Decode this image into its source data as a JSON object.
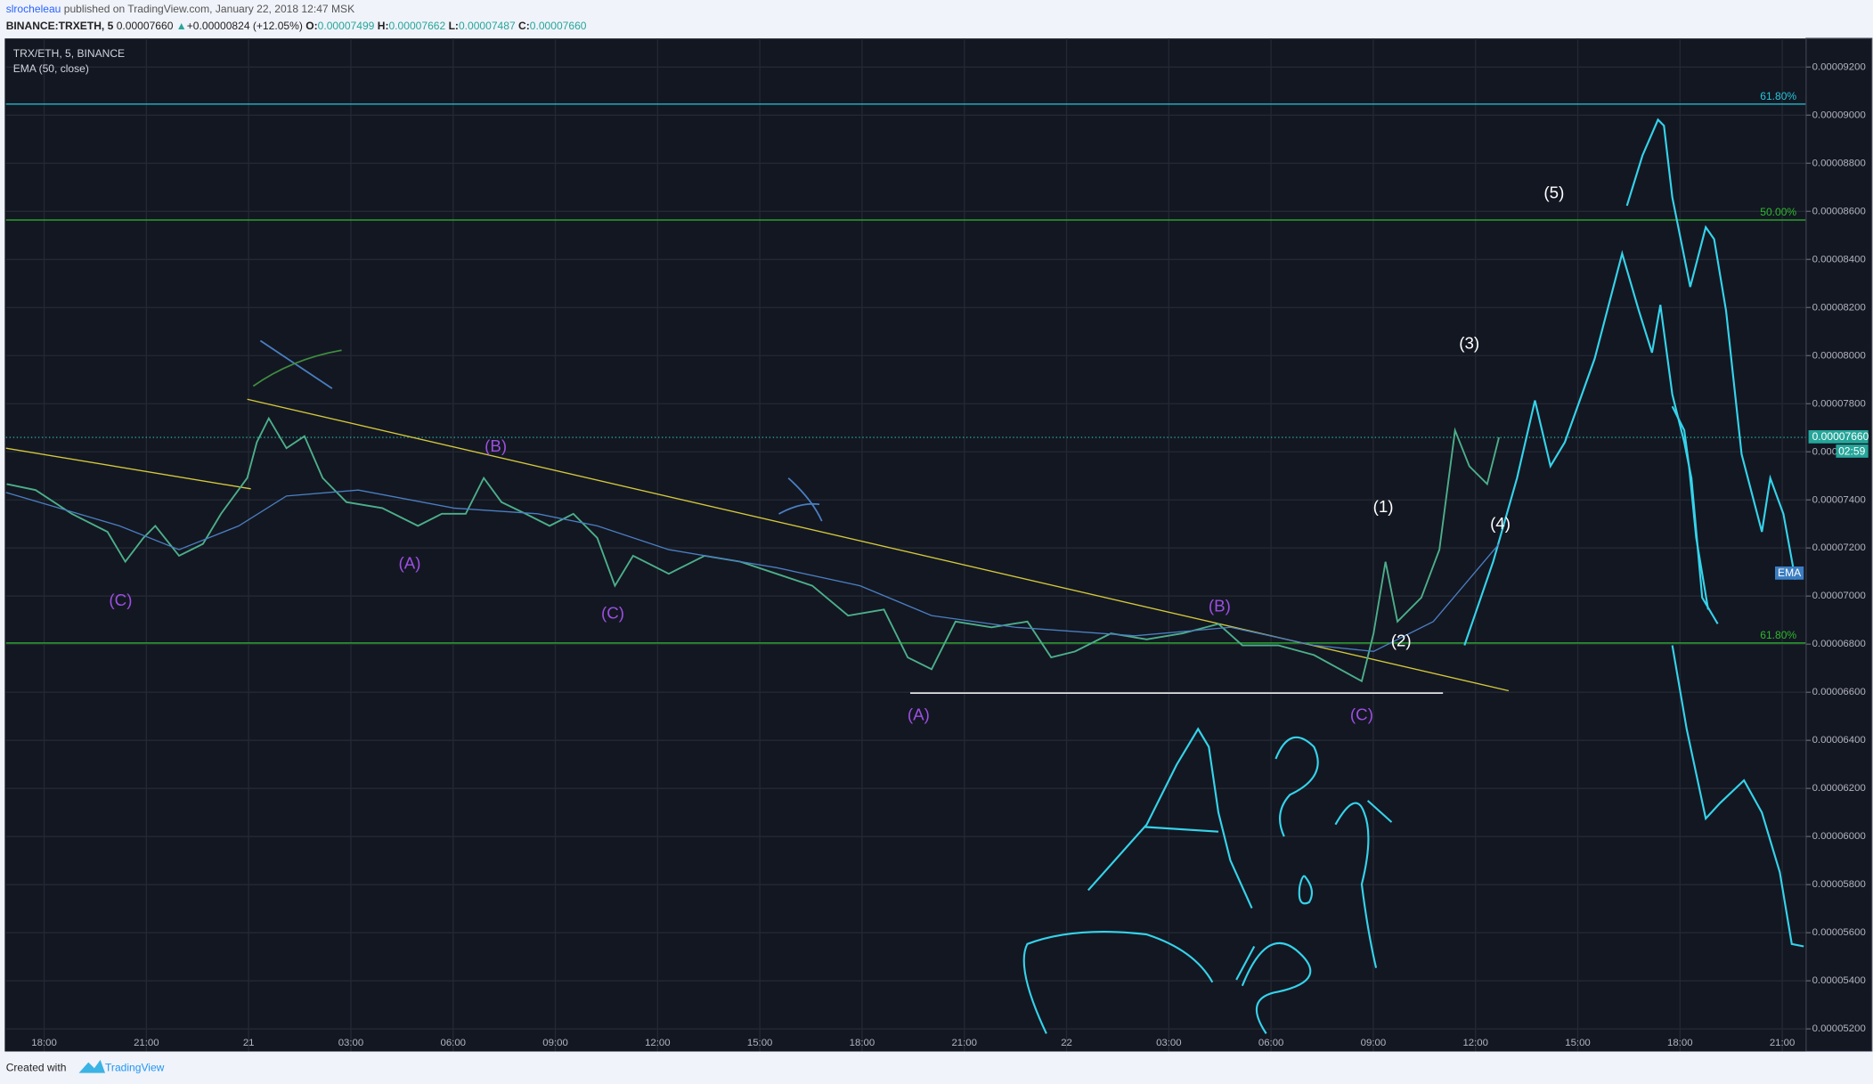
{
  "header": {
    "author": "slrocheleau",
    "published": "published on TradingView.com, January 22, 2018 12:47 MSK",
    "symbol": "BINANCE:TRXETH, 5",
    "price": "0.00007660",
    "arrow": "▲",
    "change": "+0.00000824 (+12.05%)",
    "o_label": "O:",
    "o": "0.00007499",
    "h_label": "H:",
    "h": "0.00007662",
    "l_label": "L:",
    "l": "0.00007487",
    "c_label": "C:",
    "c": "0.00007660"
  },
  "footer": {
    "created": "Created with",
    "brand": "TradingView"
  },
  "chart_data": {
    "type": "line",
    "title": "TRX/ETH, 5, BINANCE",
    "xlim": [
      -1.12,
      51.7
    ],
    "xticks": [
      {
        "value": 0,
        "label": "18:00"
      },
      {
        "value": 3,
        "label": "21:00"
      },
      {
        "value": 6,
        "label": "21"
      },
      {
        "value": 9,
        "label": "03:00"
      },
      {
        "value": 12,
        "label": "06:00"
      },
      {
        "value": 15,
        "label": "09:00"
      },
      {
        "value": 18,
        "label": "12:00"
      },
      {
        "value": 21,
        "label": "15:00"
      },
      {
        "value": 24,
        "label": "18:00"
      },
      {
        "value": 27,
        "label": "21:00"
      },
      {
        "value": 30,
        "label": "22"
      },
      {
        "value": 33,
        "label": "03:00"
      },
      {
        "value": 36,
        "label": "06:00"
      },
      {
        "value": 39,
        "label": "09:00"
      },
      {
        "value": 42,
        "label": "12:00"
      },
      {
        "value": 45,
        "label": "15:00"
      },
      {
        "value": 48,
        "label": "18:00"
      },
      {
        "value": 51,
        "label": "21:00"
      }
    ],
    "ylim": [
      5.106e-05,
      9.319e-05
    ],
    "yticks": [
      {
        "value": 9.2e-05,
        "label": "0.00009200"
      },
      {
        "value": 9e-05,
        "label": "0.00009000"
      },
      {
        "value": 8.8e-05,
        "label": "0.00008800"
      },
      {
        "value": 8.6e-05,
        "label": "0.00008600"
      },
      {
        "value": 8.4e-05,
        "label": "0.00008400"
      },
      {
        "value": 8.2e-05,
        "label": "0.00008200"
      },
      {
        "value": 8e-05,
        "label": "0.00008000"
      },
      {
        "value": 7.8e-05,
        "label": "0.00007800"
      },
      {
        "value": 7.6e-05,
        "label": "0.00007600"
      },
      {
        "value": 7.4e-05,
        "label": "0.00007400"
      },
      {
        "value": 7.2e-05,
        "label": "0.00007200"
      },
      {
        "value": 7e-05,
        "label": "0.00007000"
      },
      {
        "value": 6.8e-05,
        "label": "0.00006800"
      },
      {
        "value": 6.6e-05,
        "label": "0.00006600"
      },
      {
        "value": 6.4e-05,
        "label": "0.00006400"
      },
      {
        "value": 6.2e-05,
        "label": "0.00006200"
      },
      {
        "value": 6e-05,
        "label": "0.00006000"
      },
      {
        "value": 5.8e-05,
        "label": "0.00005800"
      },
      {
        "value": 5.6e-05,
        "label": "0.00005600"
      },
      {
        "value": 5.4e-05,
        "label": "0.00005400"
      },
      {
        "value": 5.2e-05,
        "label": "0.00005200"
      }
    ],
    "grid": true,
    "series": [
      {
        "name": "TRX/ETH",
        "color": "#4caf8a",
        "x": [
          -1.1,
          -0.25,
          0.81,
          1.86,
          2.38,
          2.91,
          3.26,
          3.96,
          4.66,
          5.19,
          5.96,
          6.24,
          6.59,
          7.11,
          7.64,
          8.17,
          8.87,
          9.92,
          10.97,
          11.67,
          12.37,
          12.9,
          13.42,
          14.13,
          14.83,
          15.53,
          16.23,
          16.75,
          17.28,
          18.33,
          19.38,
          20.43,
          21.49,
          22.54,
          23.59,
          24.64,
          25.34,
          26.04,
          26.74,
          27.8,
          28.85,
          29.55,
          30.25,
          31.3,
          32.35,
          33.4,
          34.46,
          35.16,
          36.21,
          37.26,
          38.66,
          39.01,
          39.36,
          39.71,
          40.41,
          40.94,
          41.4,
          41.82,
          42.34,
          42.69
        ],
        "values": [
          7.466e-05,
          7.441e-05,
          7.342e-05,
          7.267e-05,
          7.143e-05,
          7.242e-05,
          7.292e-05,
          7.168e-05,
          7.217e-05,
          7.342e-05,
          7.491e-05,
          7.64e-05,
          7.739e-05,
          7.615e-05,
          7.665e-05,
          7.491e-05,
          7.391e-05,
          7.366e-05,
          7.292e-05,
          7.342e-05,
          7.342e-05,
          7.491e-05,
          7.391e-05,
          7.342e-05,
          7.292e-05,
          7.342e-05,
          7.242e-05,
          7.043e-05,
          7.168e-05,
          7.093e-05,
          7.168e-05,
          7.143e-05,
          7.093e-05,
          7.043e-05,
          6.919e-05,
          6.944e-05,
          6.745e-05,
          6.696e-05,
          6.894e-05,
          6.87e-05,
          6.894e-05,
          6.745e-05,
          6.77e-05,
          6.845e-05,
          6.82e-05,
          6.845e-05,
          6.884e-05,
          6.795e-05,
          6.795e-05,
          6.755e-05,
          6.646e-05,
          6.845e-05,
          7.143e-05,
          6.894e-05,
          6.994e-05,
          7.193e-05,
          7.689e-05,
          7.54e-05,
          7.466e-05,
          7.66e-05
        ]
      },
      {
        "name": "EMA (50, close)",
        "color": "#4a7fc1",
        "x": [
          -1.12,
          2.21,
          3.96,
          5.71,
          7.11,
          9.22,
          12.02,
          14.48,
          16.23,
          18.33,
          21.49,
          23.94,
          26.04,
          28.5,
          32.0,
          34.81,
          37.26,
          39.01,
          40.76,
          42.69
        ],
        "values": [
          7.431e-05,
          7.292e-05,
          7.193e-05,
          7.292e-05,
          7.416e-05,
          7.441e-05,
          7.366e-05,
          7.342e-05,
          7.292e-05,
          7.193e-05,
          7.118e-05,
          7.043e-05,
          6.919e-05,
          6.87e-05,
          6.835e-05,
          6.87e-05,
          6.795e-05,
          6.77e-05,
          6.894e-05,
          7.217e-05
        ]
      }
    ],
    "levels": [
      {
        "label": "61.80%",
        "value": 9.046e-05,
        "color": "#26c6da"
      },
      {
        "label": "50.00%",
        "value": 8.564e-05,
        "color": "#2eb82e"
      },
      {
        "label": "61.80%",
        "value": 6.805e-05,
        "color": "#2eb82e"
      }
    ],
    "last_price": 7.66e-05,
    "last_price_label": "0.00007660",
    "countdown": "02:59",
    "ema_tag": "EMA",
    "annotations": [
      {
        "text": "(C)",
        "color": "#9c4fe0"
      },
      {
        "text": "(A)",
        "color": "#9c4fe0"
      },
      {
        "text": "(B)",
        "color": "#9c4fe0"
      },
      {
        "text": "(C)",
        "color": "#9c4fe0"
      },
      {
        "text": "(A)",
        "color": "#9c4fe0"
      },
      {
        "text": "(B)",
        "color": "#9c4fe0"
      },
      {
        "text": "(C)",
        "color": "#9c4fe0"
      },
      {
        "text": "(1)",
        "color": "#ffffff"
      },
      {
        "text": "(2)",
        "color": "#ffffff"
      },
      {
        "text": "(3)",
        "color": "#ffffff"
      },
      {
        "text": "(4)",
        "color": "#ffffff"
      },
      {
        "text": "(5)",
        "color": "#ffffff"
      }
    ]
  }
}
